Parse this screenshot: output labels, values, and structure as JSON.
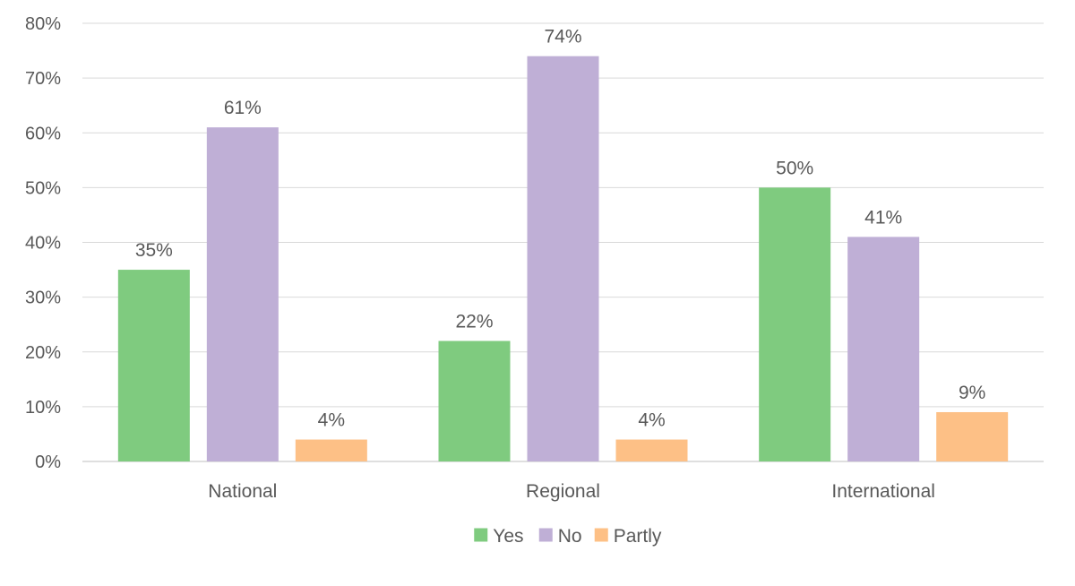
{
  "chart_data": {
    "type": "bar",
    "categories": [
      "National",
      "Regional",
      "International"
    ],
    "series": [
      {
        "name": "Yes",
        "color": "#7fcb7f",
        "values": [
          35,
          22,
          50
        ],
        "labels": [
          "35%",
          "22%",
          "50%"
        ]
      },
      {
        "name": "No",
        "color": "#bfafd6",
        "values": [
          61,
          74,
          41
        ],
        "labels": [
          "61%",
          "74%",
          "41%"
        ]
      },
      {
        "name": "Partly",
        "color": "#fdc086",
        "values": [
          4,
          4,
          9
        ],
        "labels": [
          "4%",
          "4%",
          "9%"
        ]
      }
    ],
    "ylim": [
      0,
      80
    ],
    "yticks": [
      0,
      10,
      20,
      30,
      40,
      50,
      60,
      70,
      80
    ],
    "ytick_labels": [
      "0%",
      "10%",
      "20%",
      "30%",
      "40%",
      "50%",
      "60%",
      "70%",
      "80%"
    ],
    "grid": true,
    "legend_position": "bottom",
    "title": "",
    "xlabel": "",
    "ylabel": ""
  }
}
